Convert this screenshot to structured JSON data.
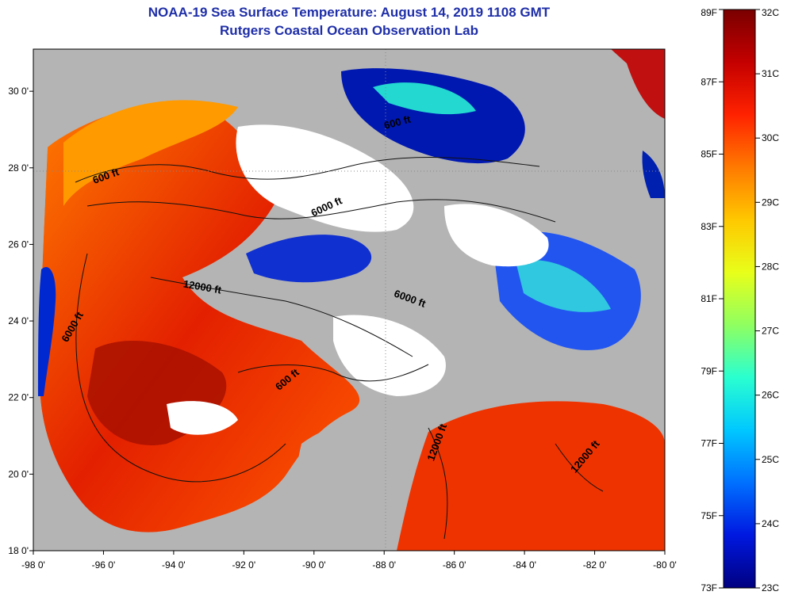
{
  "header": {
    "title": "NOAA-19 Sea Surface Temperature:  August 14, 2019 1108 GMT",
    "subtitle": "Rutgers Coastal Ocean Observation Lab"
  },
  "map": {
    "lon_ticks": [
      "-98 0'",
      "-96 0'",
      "-94 0'",
      "-92 0'",
      "-90 0'",
      "-88 0'",
      "-86 0'",
      "-84 0'",
      "-82 0'",
      "-80 0'"
    ],
    "lat_ticks": [
      "30 0'",
      "28 0'",
      "26 0'",
      "24 0'",
      "22 0'",
      "20 0'",
      "18 0'"
    ],
    "contour_labels": [
      {
        "text": "600 ft",
        "lon": -95.9,
        "lat": 27.7,
        "rot": -20
      },
      {
        "text": "600 ft",
        "lon": -87.6,
        "lat": 29.1,
        "rot": -15
      },
      {
        "text": "6000 ft",
        "lon": -89.6,
        "lat": 26.9,
        "rot": -25
      },
      {
        "text": "12000 ft",
        "lon": -93.2,
        "lat": 24.8,
        "rot": 10
      },
      {
        "text": "6000 ft",
        "lon": -96.8,
        "lat": 23.8,
        "rot": -60
      },
      {
        "text": "6000 ft",
        "lon": -87.3,
        "lat": 24.5,
        "rot": 20
      },
      {
        "text": "600 ft",
        "lon": -90.7,
        "lat": 22.4,
        "rot": -40
      },
      {
        "text": "12000 ft",
        "lon": -86.4,
        "lat": 20.8,
        "rot": -70
      },
      {
        "text": "12000 ft",
        "lon": -82.2,
        "lat": 20.4,
        "rot": -50
      }
    ]
  },
  "colorbar": {
    "f_labels": [
      "89F",
      "87F",
      "85F",
      "83F",
      "81F",
      "79F",
      "77F",
      "75F",
      "73F"
    ],
    "c_labels": [
      "32C",
      "31C",
      "30C",
      "29C",
      "28C",
      "27C",
      "26C",
      "25C",
      "24C",
      "23C"
    ],
    "colors": [
      "#7a0000",
      "#c40000",
      "#ff2200",
      "#ff7a00",
      "#ffc800",
      "#e8ff1a",
      "#90ff60",
      "#2affd0",
      "#00c8ff",
      "#0070ff",
      "#0018e0",
      "#000080"
    ]
  }
}
